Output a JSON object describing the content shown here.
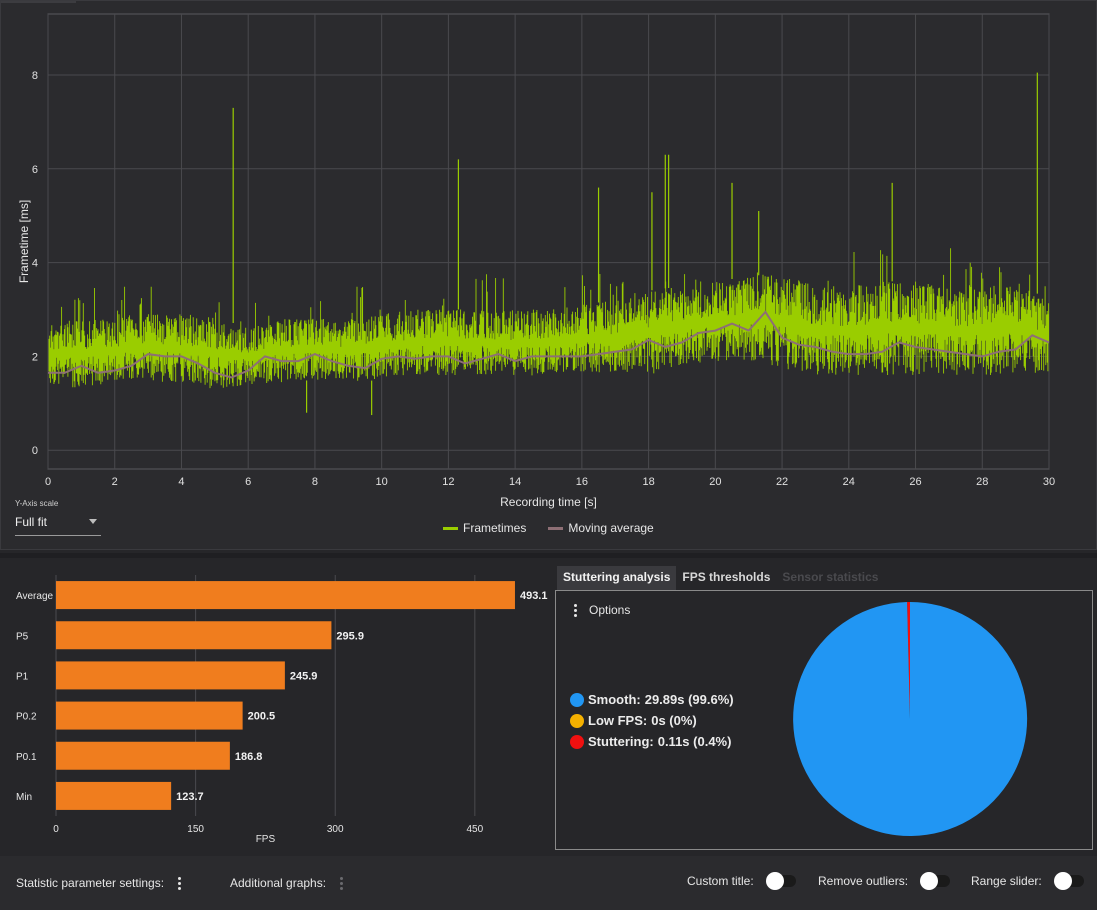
{
  "frametime_chart": {
    "yaxis_title": "Frametime [ms]",
    "xaxis_title": "Recording time [s]",
    "y_scale_caption": "Y-Axis scale",
    "y_scale_value": "Full fit",
    "legend": [
      {
        "label": "Frametimes",
        "color": "#9acd00"
      },
      {
        "label": "Moving average",
        "color": "#8e6f75"
      }
    ]
  },
  "stutter": {
    "tabs": [
      {
        "label": "Stuttering analysis",
        "state": "active"
      },
      {
        "label": "FPS thresholds",
        "state": "normal"
      },
      {
        "label": "Sensor statistics",
        "state": "disabled"
      }
    ],
    "options_label": "Options",
    "items": [
      {
        "label": "Smooth:",
        "value": "29.89s (99.6%)",
        "color": "#2196f3"
      },
      {
        "label": "Low FPS:",
        "value": "0s (0%)",
        "color": "#f5b100"
      },
      {
        "label": "Stuttering:",
        "value": "0.11s (0.4%)",
        "color": "#f01010"
      }
    ]
  },
  "footer": {
    "statistic_settings": "Statistic parameter settings:",
    "additional_graphs": "Additional graphs:",
    "custom_title": "Custom title:",
    "remove_outliers": "Remove outliers:",
    "range_slider": "Range slider:"
  },
  "chart_data": [
    {
      "type": "line",
      "title": "",
      "xlabel": "Recording time [s]",
      "ylabel": "Frametime [ms]",
      "xlim": [
        0,
        30
      ],
      "ylim": [
        -0.4,
        9.3
      ],
      "x_ticks": [
        0,
        2,
        4,
        6,
        8,
        10,
        12,
        14,
        16,
        18,
        20,
        22,
        24,
        26,
        28,
        30
      ],
      "y_ticks": [
        0,
        2,
        4,
        6,
        8
      ],
      "grid": true,
      "legend_position": "bottom-center",
      "series": [
        {
          "name": "Frametimes",
          "color": "#9acd00",
          "band": {
            "x": [
              0,
              1,
              2,
              3,
              4,
              5,
              6,
              7,
              8,
              9,
              10,
              11,
              12,
              13,
              14,
              15,
              16,
              17,
              18,
              19,
              20,
              21,
              22,
              23,
              24,
              25,
              26,
              27,
              28,
              29,
              30
            ],
            "low": [
              1.4,
              1.3,
              1.45,
              1.5,
              1.4,
              1.3,
              1.4,
              1.45,
              1.5,
              1.45,
              1.5,
              1.6,
              1.6,
              1.6,
              1.55,
              1.6,
              1.65,
              1.6,
              1.6,
              1.8,
              1.9,
              1.9,
              1.7,
              1.6,
              1.6,
              1.6,
              1.6,
              1.6,
              1.6,
              1.6,
              1.6
            ],
            "high": [
              2.7,
              2.8,
              2.8,
              2.9,
              2.9,
              2.85,
              2.6,
              2.8,
              2.8,
              2.8,
              2.9,
              3.0,
              3.0,
              3.0,
              3.0,
              3.0,
              3.1,
              3.2,
              3.4,
              3.5,
              3.6,
              3.7,
              3.8,
              3.5,
              3.5,
              3.6,
              3.6,
              3.5,
              3.5,
              3.6,
              3.2
            ]
          },
          "spikes": [
            {
              "x": 5.55,
              "y": 7.3
            },
            {
              "x": 7.75,
              "y": 0.8
            },
            {
              "x": 9.7,
              "y": 0.75
            },
            {
              "x": 12.3,
              "y": 6.2
            },
            {
              "x": 16.5,
              "y": 5.6
            },
            {
              "x": 18.1,
              "y": 5.5
            },
            {
              "x": 18.5,
              "y": 6.3
            },
            {
              "x": 18.6,
              "y": 6.3
            },
            {
              "x": 20.5,
              "y": 5.7
            },
            {
              "x": 21.3,
              "y": 5.1
            },
            {
              "x": 25.3,
              "y": 5.7
            },
            {
              "x": 29.65,
              "y": 8.05
            }
          ]
        },
        {
          "name": "Moving average",
          "color": "#8e6f75",
          "x": [
            0,
            0.5,
            1,
            1.5,
            2,
            2.5,
            3,
            3.5,
            4,
            4.5,
            5,
            5.5,
            6,
            6.5,
            7,
            7.5,
            8,
            8.5,
            9,
            9.5,
            10,
            10.5,
            11,
            11.5,
            12,
            12.5,
            13,
            13.5,
            14,
            14.5,
            15,
            15.5,
            16,
            16.5,
            17,
            17.5,
            18,
            18.5,
            19,
            19.5,
            20,
            20.5,
            21,
            21.5,
            22,
            22.5,
            23,
            23.5,
            24,
            24.5,
            25,
            25.5,
            26,
            26.5,
            27,
            27.5,
            28,
            28.5,
            29,
            29.5,
            30
          ],
          "y": [
            1.65,
            1.65,
            1.8,
            1.65,
            1.7,
            1.8,
            2.05,
            2.0,
            2.0,
            1.85,
            1.65,
            1.55,
            1.7,
            2.0,
            1.9,
            1.9,
            2.05,
            1.9,
            1.8,
            1.75,
            1.95,
            2.0,
            1.95,
            2.0,
            2.0,
            1.85,
            1.95,
            2.05,
            1.9,
            2.0,
            2.0,
            2.0,
            2.0,
            2.05,
            2.1,
            2.15,
            2.35,
            2.2,
            2.3,
            2.5,
            2.55,
            2.7,
            2.55,
            2.95,
            2.4,
            2.25,
            2.2,
            2.1,
            2.05,
            2.05,
            2.1,
            2.3,
            2.2,
            2.15,
            2.1,
            2.05,
            2.0,
            2.1,
            2.15,
            2.45,
            2.3
          ]
        }
      ]
    },
    {
      "type": "bar",
      "orientation": "horizontal",
      "xlabel": "FPS",
      "xlim": [
        0,
        520
      ],
      "x_ticks": [
        0,
        150,
        300,
        450
      ],
      "categories": [
        "Average",
        "P5",
        "P1",
        "P0.2",
        "P0.1",
        "Min"
      ],
      "values": [
        493.1,
        295.9,
        245.9,
        200.5,
        186.8,
        123.7
      ],
      "color": "#f07d1e",
      "grid": true
    },
    {
      "type": "pie",
      "labels": [
        "Smooth",
        "Low FPS",
        "Stuttering"
      ],
      "values": [
        99.6,
        0,
        0.4
      ],
      "colors": [
        "#2196f3",
        "#f5b100",
        "#f01010"
      ]
    }
  ]
}
